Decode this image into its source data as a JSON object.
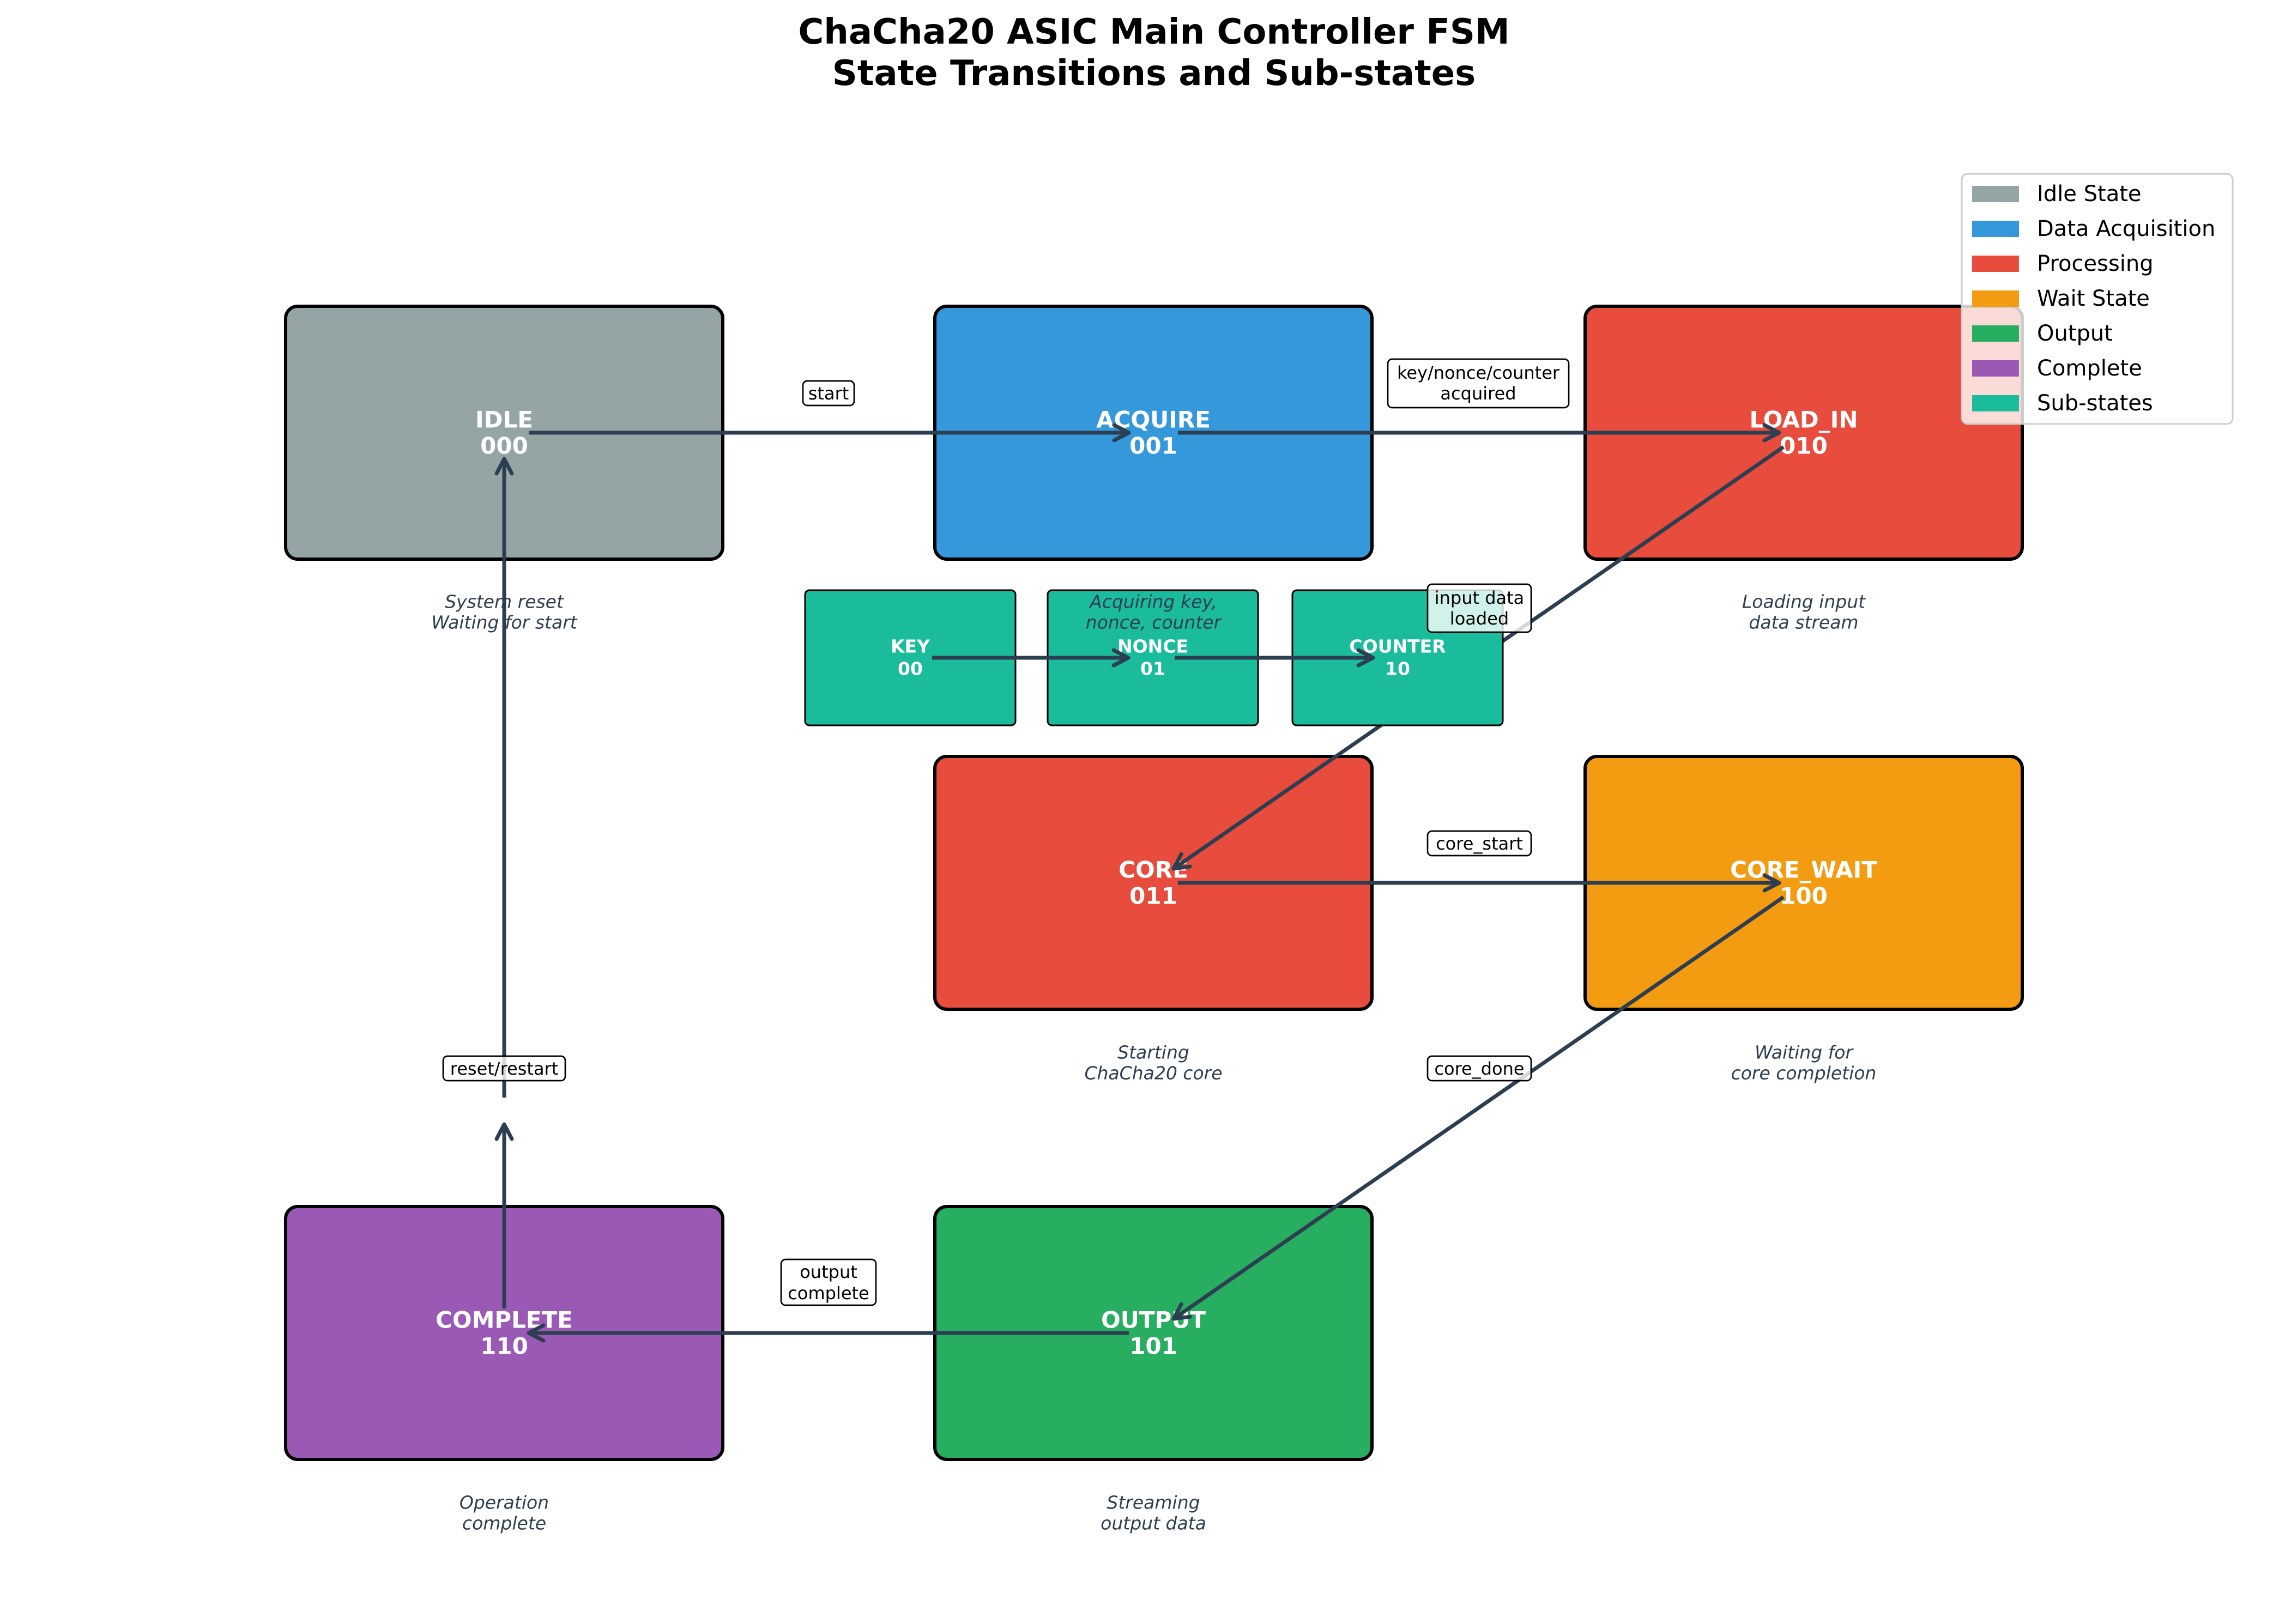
{
  "title": {
    "line1": "ChaCha20 ASIC Main Controller FSM",
    "line2": "State Transitions and Sub-states"
  },
  "colors": {
    "arrow": "#2C3E50",
    "description": "#2C3E50"
  },
  "states": {
    "idle": {
      "name": "IDLE",
      "code": "000",
      "description": [
        "System reset",
        "Waiting for start"
      ],
      "color": "#95A5A6"
    },
    "acquire": {
      "name": "ACQUIRE",
      "code": "001",
      "description": [
        "Acquiring key,",
        "nonce, counter"
      ],
      "color": "#3498DB"
    },
    "load_in": {
      "name": "LOAD_IN",
      "code": "010",
      "description": [
        "Loading input",
        "data stream"
      ],
      "color": "#E74C3C"
    },
    "core": {
      "name": "CORE",
      "code": "011",
      "description": [
        "Starting",
        "ChaCha20 core"
      ],
      "color": "#E74C3C"
    },
    "core_wait": {
      "name": "CORE_WAIT",
      "code": "100",
      "description": [
        "Waiting for",
        "core completion"
      ],
      "color": "#F39C12"
    },
    "output": {
      "name": "OUTPUT",
      "code": "101",
      "description": [
        "Streaming",
        "output data"
      ],
      "color": "#27AE60"
    },
    "complete": {
      "name": "COMPLETE",
      "code": "110",
      "description": [
        "Operation",
        "complete"
      ],
      "color": "#9B59B6"
    }
  },
  "substates": {
    "key": {
      "name": "KEY",
      "code": "00",
      "color": "#1ABC9C"
    },
    "nonce": {
      "name": "NONCE",
      "code": "01",
      "color": "#1ABC9C"
    },
    "counter": {
      "name": "COUNTER",
      "code": "10",
      "color": "#1ABC9C"
    }
  },
  "transitions": {
    "idle_to_acquire": {
      "label": [
        "start"
      ]
    },
    "acquire_to_load_in": {
      "label": [
        "key/nonce/counter",
        "acquired"
      ]
    },
    "load_in_to_core": {
      "label": [
        "input data",
        "loaded"
      ]
    },
    "core_to_core_wait": {
      "label": [
        "core_start"
      ]
    },
    "core_wait_to_output": {
      "label": [
        "core_done"
      ]
    },
    "output_to_complete": {
      "label": [
        "output",
        "complete"
      ]
    },
    "complete_to_idle": {
      "label": [
        "reset/restart"
      ]
    }
  },
  "legend": [
    {
      "label": "Idle State",
      "color": "#95A5A6"
    },
    {
      "label": "Data Acquisition",
      "color": "#3498DB"
    },
    {
      "label": "Processing",
      "color": "#E74C3C"
    },
    {
      "label": "Wait State",
      "color": "#F39C12"
    },
    {
      "label": "Output",
      "color": "#27AE60"
    },
    {
      "label": "Complete",
      "color": "#9B59B6"
    },
    {
      "label": "Sub-states",
      "color": "#1ABC9C"
    }
  ]
}
